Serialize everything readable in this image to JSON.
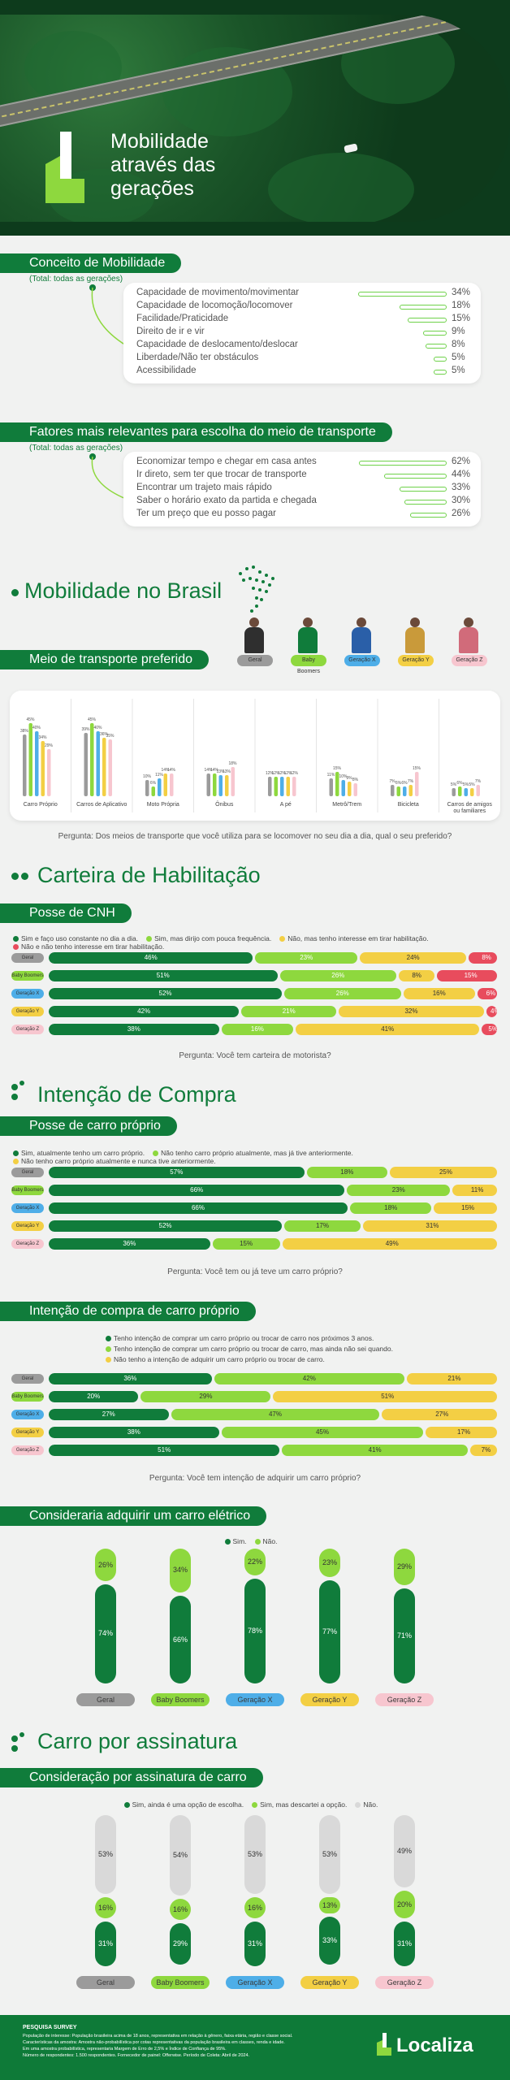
{
  "colors": {
    "dark_green": "#107c3b",
    "green": "#8ed83e",
    "yellow": "#f3cf44",
    "pink": "#f7c6cf",
    "blue": "#4eaee8",
    "red": "#e84c5d",
    "gray": "#9b9b9b",
    "light_gray": "#d9d9d9"
  },
  "hero": {
    "title_lines": [
      "Mobilidade",
      "através das",
      "gerações"
    ]
  },
  "conceito": {
    "title": "Conceito de Mobilidade",
    "note": "(Total: todas as gerações)",
    "items": [
      {
        "label": "Capacidade de movimento/movimentar",
        "value": "34%",
        "v": 34
      },
      {
        "label": "Capacidade de locomoção/locomover",
        "value": "18%",
        "v": 18
      },
      {
        "label": "Facilidade/Praticidade",
        "value": "15%",
        "v": 15
      },
      {
        "label": "Direito de ir e vir",
        "value": "9%",
        "v": 9
      },
      {
        "label": "Capacidade de deslocamento/deslocar",
        "value": "8%",
        "v": 8
      },
      {
        "label": "Liberdade/Não ter obstáculos",
        "value": "5%",
        "v": 5
      },
      {
        "label": "Acessibilidade",
        "value": "5%",
        "v": 5
      }
    ]
  },
  "fatores": {
    "title": "Fatores mais relevantes para escolha do meio de transporte",
    "note": "(Total: todas as gerações)",
    "items": [
      {
        "label": "Economizar tempo e chegar em casa antes",
        "value": "62%",
        "v": 62
      },
      {
        "label": "Ir direto, sem ter que trocar de transporte",
        "value": "44%",
        "v": 44
      },
      {
        "label": "Encontrar um trajeto mais rápido",
        "value": "33%",
        "v": 33
      },
      {
        "label": "Saber o horário exato da partida e chegada",
        "value": "30%",
        "v": 30
      },
      {
        "label": "Ter um preço que eu posso pagar",
        "value": "26%",
        "v": 26
      }
    ]
  },
  "brasil": {
    "title": "Mobilidade no Brasil",
    "generations": [
      {
        "name": "Geral",
        "color": "#9b9b9b"
      },
      {
        "name": "Baby Boomers",
        "color": "#8ed83e"
      },
      {
        "name": "Geração X",
        "color": "#4eaee8"
      },
      {
        "name": "Geração Y",
        "color": "#f3cf44"
      },
      {
        "name": "Geração Z",
        "color": "#f7c6cf"
      }
    ]
  },
  "meio": {
    "title": "Meio de transporte preferido",
    "question": "Pergunta: Dos meios de transporte que você utiliza para se locomover no seu dia a dia, qual o seu preferido?",
    "chart_data": {
      "type": "bar",
      "categories": [
        "Carro Próprio",
        "Carros de Aplicativo",
        "Moto Própria",
        "Ônibus",
        "A pé",
        "Metrô/Trem",
        "Bicicleta",
        "Carros de amigos ou familiares"
      ],
      "series": [
        {
          "name": "Geral",
          "values": [
            38,
            39,
            10,
            14,
            12,
            11,
            7,
            5
          ]
        },
        {
          "name": "Baby Boomers",
          "values": [
            45,
            45,
            6,
            14,
            12,
            15,
            6,
            6
          ]
        },
        {
          "name": "Geração X",
          "values": [
            40,
            40,
            11,
            13,
            12,
            10,
            6,
            5
          ]
        },
        {
          "name": "Geração Y",
          "values": [
            34,
            36,
            14,
            13,
            12,
            9,
            7,
            5
          ]
        },
        {
          "name": "Geração Z",
          "values": [
            29,
            35,
            14,
            18,
            12,
            8,
            15,
            7
          ]
        }
      ],
      "labels": [
        [
          "38%",
          "45%",
          "40%",
          "34%",
          "29%"
        ],
        [
          "39%",
          "45%",
          "40%",
          "36%",
          "35%"
        ],
        [
          "10%",
          "6%",
          "11%",
          "14%",
          "14%"
        ],
        [
          "14%",
          "14%",
          "13%",
          "13%",
          "18%"
        ],
        [
          "12%",
          "12%",
          "12%",
          "12%",
          "12%"
        ],
        [
          "11%",
          "15%",
          "10%",
          "9%",
          "8%"
        ],
        [
          "7%",
          "6%",
          "6%",
          "7%",
          "15%"
        ],
        [
          "5%",
          "6%",
          "5%",
          "5%",
          "7%"
        ]
      ],
      "ylim": [
        0,
        50
      ]
    }
  },
  "carteira": {
    "title": "Carteira de Habilitação",
    "sub": "Posse de CNH",
    "legend": [
      "Sim e faço uso constante no dia a dia.",
      "Sim, mas dirijo com pouca frequência.",
      "Não, mas tenho interesse em tirar habilitação.",
      "Não e não tenho interesse em tirar habilitação."
    ],
    "question": "Pergunta: Você tem carteira de motorista?",
    "chart_data": {
      "type": "bar",
      "orientation": "horizontal-stacked",
      "categories": [
        "Geral",
        "Baby Boomers",
        "Geração X",
        "Geração Y",
        "Geração Z"
      ],
      "series": [
        {
          "name": "Sim e faço uso constante no dia a dia.",
          "values": [
            46,
            51,
            52,
            42,
            38
          ]
        },
        {
          "name": "Sim, mas dirijo com pouca frequência.",
          "values": [
            23,
            26,
            26,
            21,
            16
          ]
        },
        {
          "name": "Não, mas tenho interesse em tirar habilitação.",
          "values": [
            24,
            8,
            16,
            32,
            41
          ]
        },
        {
          "name": "Não e não tenho interesse em tirar habilitação.",
          "values": [
            8,
            15,
            6,
            4,
            5
          ]
        }
      ]
    }
  },
  "intencao": {
    "title": "Intenção de Compra",
    "sub": "Posse de carro próprio",
    "legend": [
      "Sim, atualmente tenho um carro próprio.",
      "Não tenho carro próprio atualmente, mas já tive anteriormente.",
      "Não tenho carro próprio atualmente e nunca tive anteriormente."
    ],
    "question": "Pergunta: Você tem ou já teve um carro próprio?",
    "chart_data": {
      "type": "bar",
      "orientation": "horizontal-stacked",
      "categories": [
        "Geral",
        "Baby Boomers",
        "Geração X",
        "Geração Y",
        "Geração Z"
      ],
      "series": [
        {
          "name": "Sim, atualmente tenho um carro próprio.",
          "values": [
            57,
            66,
            66,
            52,
            36
          ]
        },
        {
          "name": "Não tenho carro próprio atualmente, mas já tive anteriormente.",
          "values": [
            18,
            23,
            18,
            17,
            15
          ]
        },
        {
          "name": "Não tenho carro próprio atualmente e nunca tive anteriormente.",
          "values": [
            25,
            11,
            15,
            31,
            49
          ]
        }
      ]
    }
  },
  "compra": {
    "sub": "Intenção de compra de carro próprio",
    "legend": [
      "Tenho intenção de comprar um carro próprio ou trocar de carro nos próximos 3 anos.",
      "Tenho intenção de comprar um carro próprio ou trocar de carro, mas ainda não sei quando.",
      "Não tenho a intenção de adquirir um carro próprio ou trocar de carro."
    ],
    "question": "Pergunta: Você tem intenção de adquirir um carro próprio?",
    "chart_data": {
      "type": "bar",
      "orientation": "horizontal-stacked",
      "categories": [
        "Geral",
        "Baby Boomers",
        "Geração X",
        "Geração Y",
        "Geração Z"
      ],
      "series": [
        {
          "name": "Tenho intenção de comprar um carro próprio ou trocar de carro nos próximos 3 anos.",
          "values": [
            36,
            20,
            27,
            38,
            51
          ]
        },
        {
          "name": "Tenho intenção de comprar um carro próprio ou trocar de carro, mas ainda não sei quando.",
          "values": [
            42,
            29,
            47,
            45,
            41
          ]
        },
        {
          "name": "Não tenho a intenção de adquirir um carro próprio ou trocar de carro.",
          "values": [
            21,
            51,
            27,
            17,
            7
          ]
        }
      ]
    }
  },
  "eletrico": {
    "sub": "Consideraria adquirir um carro elétrico",
    "legend": [
      "Sim.",
      "Não."
    ],
    "chart_data": {
      "type": "bar",
      "orientation": "vertical-stacked",
      "categories": [
        "Geral",
        "Baby Boomers",
        "Geração X",
        "Geração Y",
        "Geração Z"
      ],
      "series": [
        {
          "name": "Sim.",
          "values": [
            74,
            66,
            78,
            77,
            71
          ]
        },
        {
          "name": "Não.",
          "values": [
            26,
            34,
            22,
            23,
            29
          ]
        }
      ]
    }
  },
  "assinatura": {
    "title": "Carro por assinatura",
    "sub": "Consideração por assinatura de carro",
    "legend": [
      "Sim, ainda é uma opção de escolha.",
      "Sim, mas descartei a opção.",
      "Não."
    ],
    "chart_data": {
      "type": "bar",
      "orientation": "vertical-stacked",
      "categories": [
        "Geral",
        "Baby Boomers",
        "Geração X",
        "Geração Y",
        "Geração Z"
      ],
      "series": [
        {
          "name": "Sim, ainda é uma opção de escolha.",
          "values": [
            31,
            29,
            31,
            33,
            31
          ]
        },
        {
          "name": "Sim, mas descartei a opção.",
          "values": [
            16,
            16,
            16,
            13,
            20
          ]
        },
        {
          "name": "Não.",
          "values": [
            53,
            54,
            53,
            53,
            49
          ]
        }
      ]
    }
  },
  "footer": {
    "survey": "PESQUISA SURVEY",
    "lines": [
      "População de interesse: População brasileira acima de 18 anos, representativa em relação à gênero, faixa etária, região e classe social.",
      "Características da amostra: Amostra não-probabilística por cotas representativas da população brasileira em classes, renda e idade.",
      "Em uma amostra probabilística, representaria Margem de Erro de 2,5% e Índice de Confiança de 95%.",
      "Número de respondentes: 1.500 respondentes.   Fornecedor de painel: Offerwise.   Período de Coleta: Abril de 2024."
    ],
    "brand": "Localiza"
  }
}
